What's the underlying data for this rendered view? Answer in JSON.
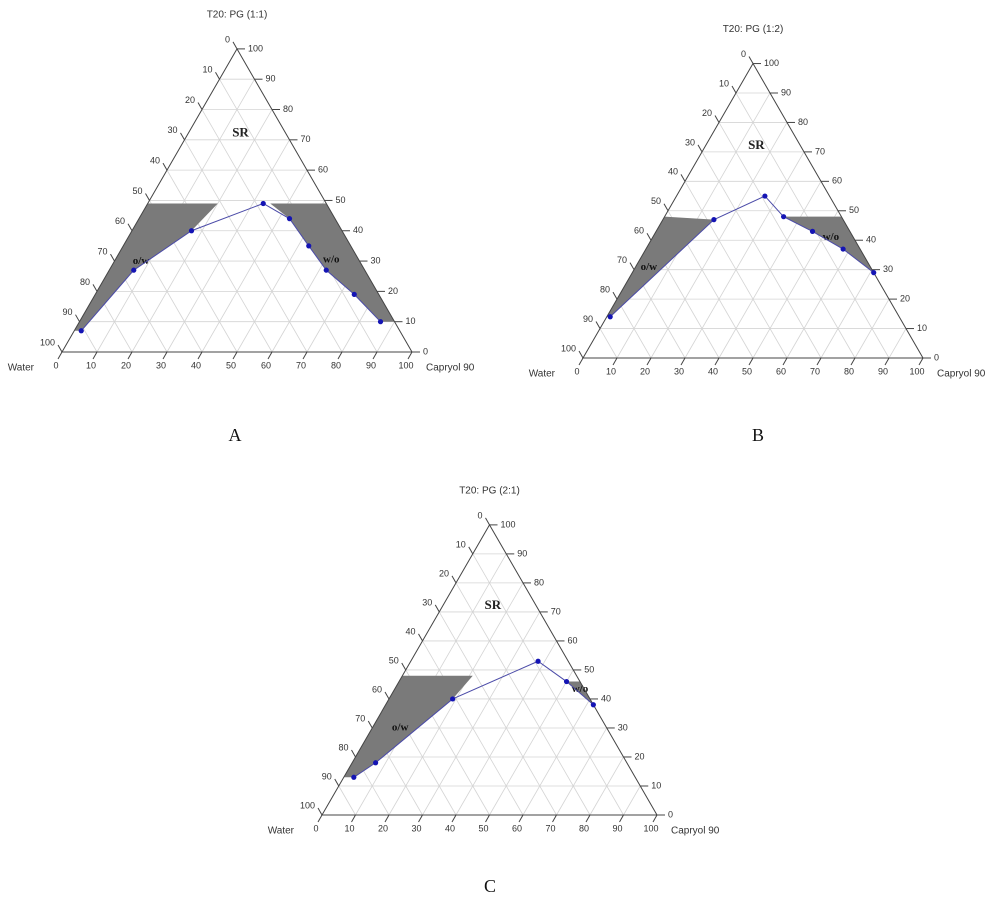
{
  "chart_data": [
    {
      "type": "ternary",
      "title": "T20: PG (1:1)",
      "left_label": "Water",
      "right_label": "Capryol 90",
      "panel_label": "A",
      "ticks": [
        0,
        10,
        20,
        30,
        40,
        50,
        60,
        70,
        80,
        90,
        100
      ],
      "grid": true,
      "annotation": "SR",
      "boundary": {
        "color": "#4b4ba8",
        "point_color": "#1414b4",
        "x": [
          2,
          7,
          17,
          33,
          43,
          53,
          62,
          74,
          86
        ],
        "y": [
          7,
          27,
          40,
          49,
          44,
          35,
          27,
          19,
          10
        ]
      },
      "regions": [
        {
          "label": "o/w",
          "color": "#7a7a7a",
          "x": [
            0,
            20,
            17,
            7,
            2,
            0
          ],
          "y": [
            49,
            49,
            40,
            27,
            7,
            7
          ]
        },
        {
          "label": "w/o",
          "color": "#7a7a7a",
          "x": [
            35,
            51,
            90,
            86,
            74,
            62,
            53,
            43
          ],
          "y": [
            49,
            49,
            10,
            10,
            19,
            27,
            35,
            44
          ]
        }
      ]
    },
    {
      "type": "ternary",
      "title": "T20: PG (1:2)",
      "left_label": "Water",
      "right_label": "Capryol 90",
      "panel_label": "B",
      "ticks": [
        0,
        10,
        20,
        30,
        40,
        50,
        60,
        70,
        80,
        90,
        100
      ],
      "grid": true,
      "annotation": "SR",
      "boundary": {
        "color": "#4b4ba8",
        "point_color": "#1414b4",
        "x": [
          1,
          15,
          26,
          35,
          46,
          58,
          71
        ],
        "y": [
          14,
          47,
          55,
          48,
          43,
          37,
          29
        ]
      },
      "regions": [
        {
          "label": "o/w",
          "color": "#7a7a7a",
          "x": [
            0,
            15,
            1,
            0
          ],
          "y": [
            48,
            47,
            14,
            14
          ]
        },
        {
          "label": "w/o",
          "color": "#7a7a7a",
          "x": [
            35,
            52,
            71,
            58,
            46
          ],
          "y": [
            48,
            48,
            29,
            37,
            43
          ]
        }
      ]
    },
    {
      "type": "ternary",
      "title": "T20: PG (2:1)",
      "left_label": "Water",
      "right_label": "Capryol 90",
      "panel_label": "C",
      "ticks": [
        0,
        10,
        20,
        30,
        40,
        50,
        60,
        70,
        80,
        90,
        100
      ],
      "grid": true,
      "annotation": "SR",
      "boundary": {
        "color": "#4b4ba8",
        "point_color": "#1414b4",
        "x": [
          3,
          7,
          19,
          38,
          50,
          62
        ],
        "y": [
          13,
          18,
          40,
          53,
          46,
          38
        ]
      },
      "regions": [
        {
          "label": "o/w",
          "color": "#7a7a7a",
          "x": [
            0,
            21,
            19,
            7,
            3,
            0
          ],
          "y": [
            48,
            48,
            40,
            18,
            13,
            13
          ]
        },
        {
          "label": "w/o",
          "color": "#7a7a7a",
          "x": [
            50,
            54,
            62
          ],
          "y": [
            46,
            46,
            38
          ]
        }
      ]
    }
  ]
}
